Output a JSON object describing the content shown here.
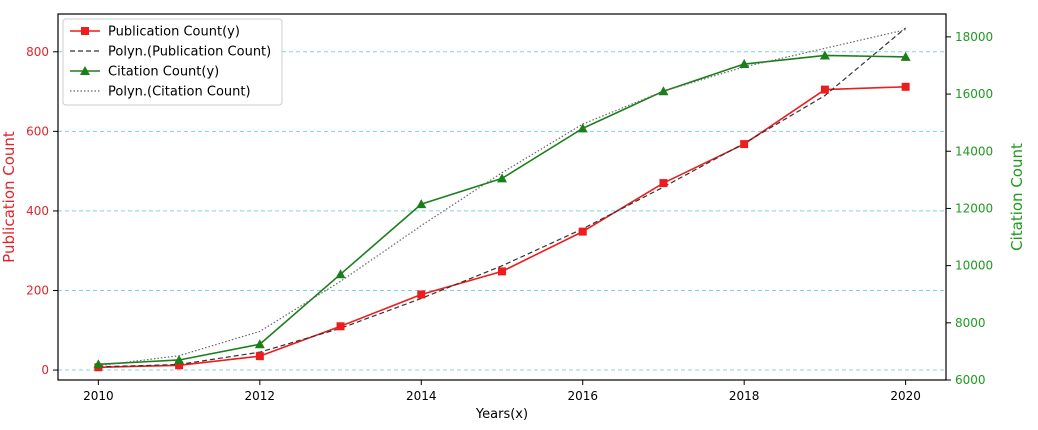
{
  "chart_data": {
    "type": "line",
    "xlabel": "Years(x)",
    "ylabel_left": "Publication Count",
    "ylabel_right": "Citation Count",
    "x": [
      2010,
      2011,
      2012,
      2013,
      2014,
      2015,
      2016,
      2017,
      2018,
      2019,
      2020
    ],
    "x_ticks": [
      2010,
      2012,
      2014,
      2016,
      2018,
      2020
    ],
    "xlim": [
      2009.5,
      2020.5
    ],
    "ylim_left": [
      -25,
      895
    ],
    "y_ticks_left": [
      0,
      200,
      400,
      600,
      800
    ],
    "ylim_right": [
      6000,
      18800
    ],
    "y_ticks_right": [
      6000,
      8000,
      10000,
      12000,
      14000,
      16000,
      18000
    ],
    "grid": "horizontal dashed",
    "legend_position": "top-left",
    "series": [
      {
        "name": "Publication Count(y)",
        "axis": "left",
        "color": "#ee1c1c",
        "marker": "square",
        "line": "solid",
        "values": [
          7,
          12,
          35,
          110,
          190,
          248,
          348,
          470,
          568,
          705,
          712
        ]
      },
      {
        "name": "Polyn.(Publication Count)",
        "axis": "left",
        "color": "#333333",
        "marker": "none",
        "line": "dashed",
        "values": [
          8,
          14,
          45,
          105,
          180,
          262,
          355,
          460,
          570,
          690,
          860
        ]
      },
      {
        "name": "Citation Count(y)",
        "axis": "right",
        "color": "#1a7f1a",
        "marker": "triangle",
        "line": "solid",
        "values": [
          6550,
          6700,
          7250,
          9700,
          12150,
          13050,
          14800,
          16100,
          17050,
          17350,
          17300
        ]
      },
      {
        "name": "Polyn.(Citation Count)",
        "axis": "right",
        "color": "#666666",
        "marker": "none",
        "line": "dotted",
        "values": [
          6500,
          6850,
          7700,
          9450,
          11400,
          13250,
          14950,
          16100,
          16950,
          17600,
          18250
        ]
      }
    ],
    "colors": {
      "left_axis": "#e0262d",
      "right_axis": "#1f9a1f",
      "grid": "#7fd3e8"
    }
  }
}
